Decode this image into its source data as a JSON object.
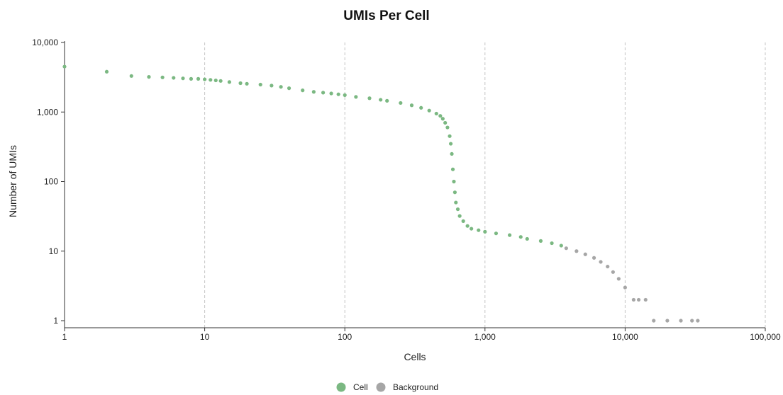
{
  "chart_data": {
    "type": "scatter",
    "title": "UMIs Per Cell",
    "xlabel": "Cells",
    "ylabel": "Number of UMIs",
    "xscale": "log",
    "yscale": "log",
    "xlim": [
      1,
      100000
    ],
    "ylim": [
      1,
      10000
    ],
    "x_ticks": [
      1,
      10,
      100,
      1000,
      10000,
      100000
    ],
    "x_tick_labels": [
      "1",
      "10",
      "100",
      "1,000",
      "10,000",
      "100,000"
    ],
    "y_ticks": [
      1,
      10,
      100,
      1000,
      10000
    ],
    "y_tick_labels": [
      "1",
      "10",
      "100",
      "1,000",
      "10,000"
    ],
    "grid": "vertical dashed",
    "legend_position": "bottom-center",
    "series": [
      {
        "name": "Cell",
        "color": "#7bb882",
        "points": [
          [
            1,
            4500
          ],
          [
            2,
            3800
          ],
          [
            3,
            3300
          ],
          [
            4,
            3200
          ],
          [
            5,
            3150
          ],
          [
            6,
            3100
          ],
          [
            7,
            3050
          ],
          [
            8,
            3000
          ],
          [
            9,
            3000
          ],
          [
            10,
            2950
          ],
          [
            11,
            2900
          ],
          [
            12,
            2850
          ],
          [
            13,
            2800
          ],
          [
            15,
            2700
          ],
          [
            18,
            2600
          ],
          [
            20,
            2550
          ],
          [
            25,
            2480
          ],
          [
            30,
            2400
          ],
          [
            35,
            2300
          ],
          [
            40,
            2200
          ],
          [
            50,
            2050
          ],
          [
            60,
            1950
          ],
          [
            70,
            1900
          ],
          [
            80,
            1850
          ],
          [
            90,
            1800
          ],
          [
            100,
            1750
          ],
          [
            120,
            1650
          ],
          [
            150,
            1580
          ],
          [
            180,
            1500
          ],
          [
            200,
            1450
          ],
          [
            250,
            1350
          ],
          [
            300,
            1250
          ],
          [
            350,
            1150
          ],
          [
            400,
            1050
          ],
          [
            450,
            950
          ],
          [
            480,
            880
          ],
          [
            500,
            800
          ],
          [
            520,
            700
          ],
          [
            540,
            600
          ],
          [
            560,
            450
          ],
          [
            570,
            350
          ],
          [
            580,
            250
          ],
          [
            590,
            150
          ],
          [
            600,
            100
          ],
          [
            610,
            70
          ],
          [
            620,
            50
          ],
          [
            640,
            40
          ],
          [
            660,
            32
          ],
          [
            700,
            27
          ],
          [
            750,
            23
          ],
          [
            800,
            21
          ],
          [
            900,
            20
          ],
          [
            1000,
            19
          ],
          [
            1200,
            18
          ],
          [
            1500,
            17
          ],
          [
            1800,
            16
          ],
          [
            2000,
            15
          ],
          [
            2500,
            14
          ],
          [
            3000,
            13
          ],
          [
            3500,
            12
          ]
        ]
      },
      {
        "name": "Background",
        "color": "#a6a6a6",
        "points": [
          [
            3800,
            11
          ],
          [
            4500,
            10
          ],
          [
            5200,
            9
          ],
          [
            6000,
            8
          ],
          [
            6700,
            7
          ],
          [
            7500,
            6
          ],
          [
            8200,
            5
          ],
          [
            9000,
            4
          ],
          [
            10000,
            3
          ],
          [
            11500,
            2
          ],
          [
            12500,
            2
          ],
          [
            14000,
            2
          ],
          [
            16000,
            1
          ],
          [
            20000,
            1
          ],
          [
            25000,
            1
          ],
          [
            30000,
            1
          ],
          [
            33000,
            1
          ]
        ]
      }
    ]
  }
}
